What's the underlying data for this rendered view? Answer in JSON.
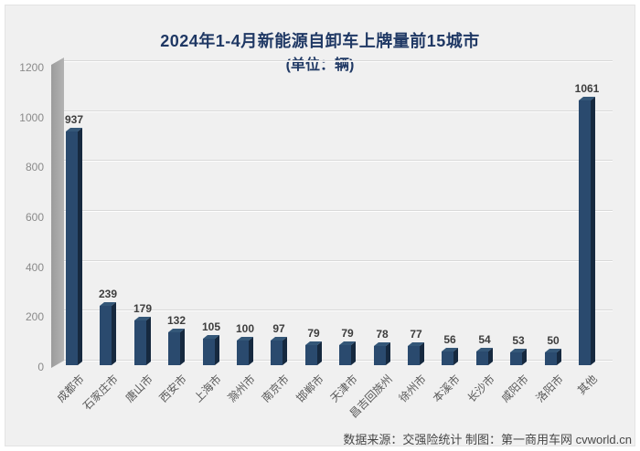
{
  "title": {
    "line1": "2024年1-4月新能源自卸车上牌量前15城市",
    "line2": "(单位：辆)"
  },
  "footer": {
    "source": "数据来源：交强险统计 制图：第一商用车网 cvworld.cn"
  },
  "chart_data": {
    "type": "bar",
    "style": "3d-column",
    "title": "2024年1-4月新能源自卸车上牌量前15城市",
    "subtitle": "(单位：辆)",
    "categories": [
      "成都市",
      "石家庄市",
      "唐山市",
      "西安市",
      "上海市",
      "滁州市",
      "南京市",
      "邯郸市",
      "天津市",
      "昌吉回族州",
      "徐州市",
      "本溪市",
      "长沙市",
      "咸阳市",
      "洛阳市",
      "其他"
    ],
    "values": [
      937,
      239,
      179,
      132,
      105,
      100,
      97,
      79,
      79,
      78,
      77,
      56,
      54,
      53,
      50,
      1061
    ],
    "xlabel": "",
    "ylabel": "",
    "ylim": [
      0,
      1200
    ],
    "ytick_interval": 200,
    "grid": true,
    "legend": false,
    "colors": {
      "bar_front": "#2a4a6e",
      "bar_side": "#16293f",
      "bar_top": "#345778",
      "wall": "#a6a6a6",
      "title": "#1f3864",
      "plot_background": "#f0f0f0",
      "value_label": "#3d3d3d",
      "axis_label": "#595959",
      "tick_label": "#8a8a8a"
    }
  }
}
